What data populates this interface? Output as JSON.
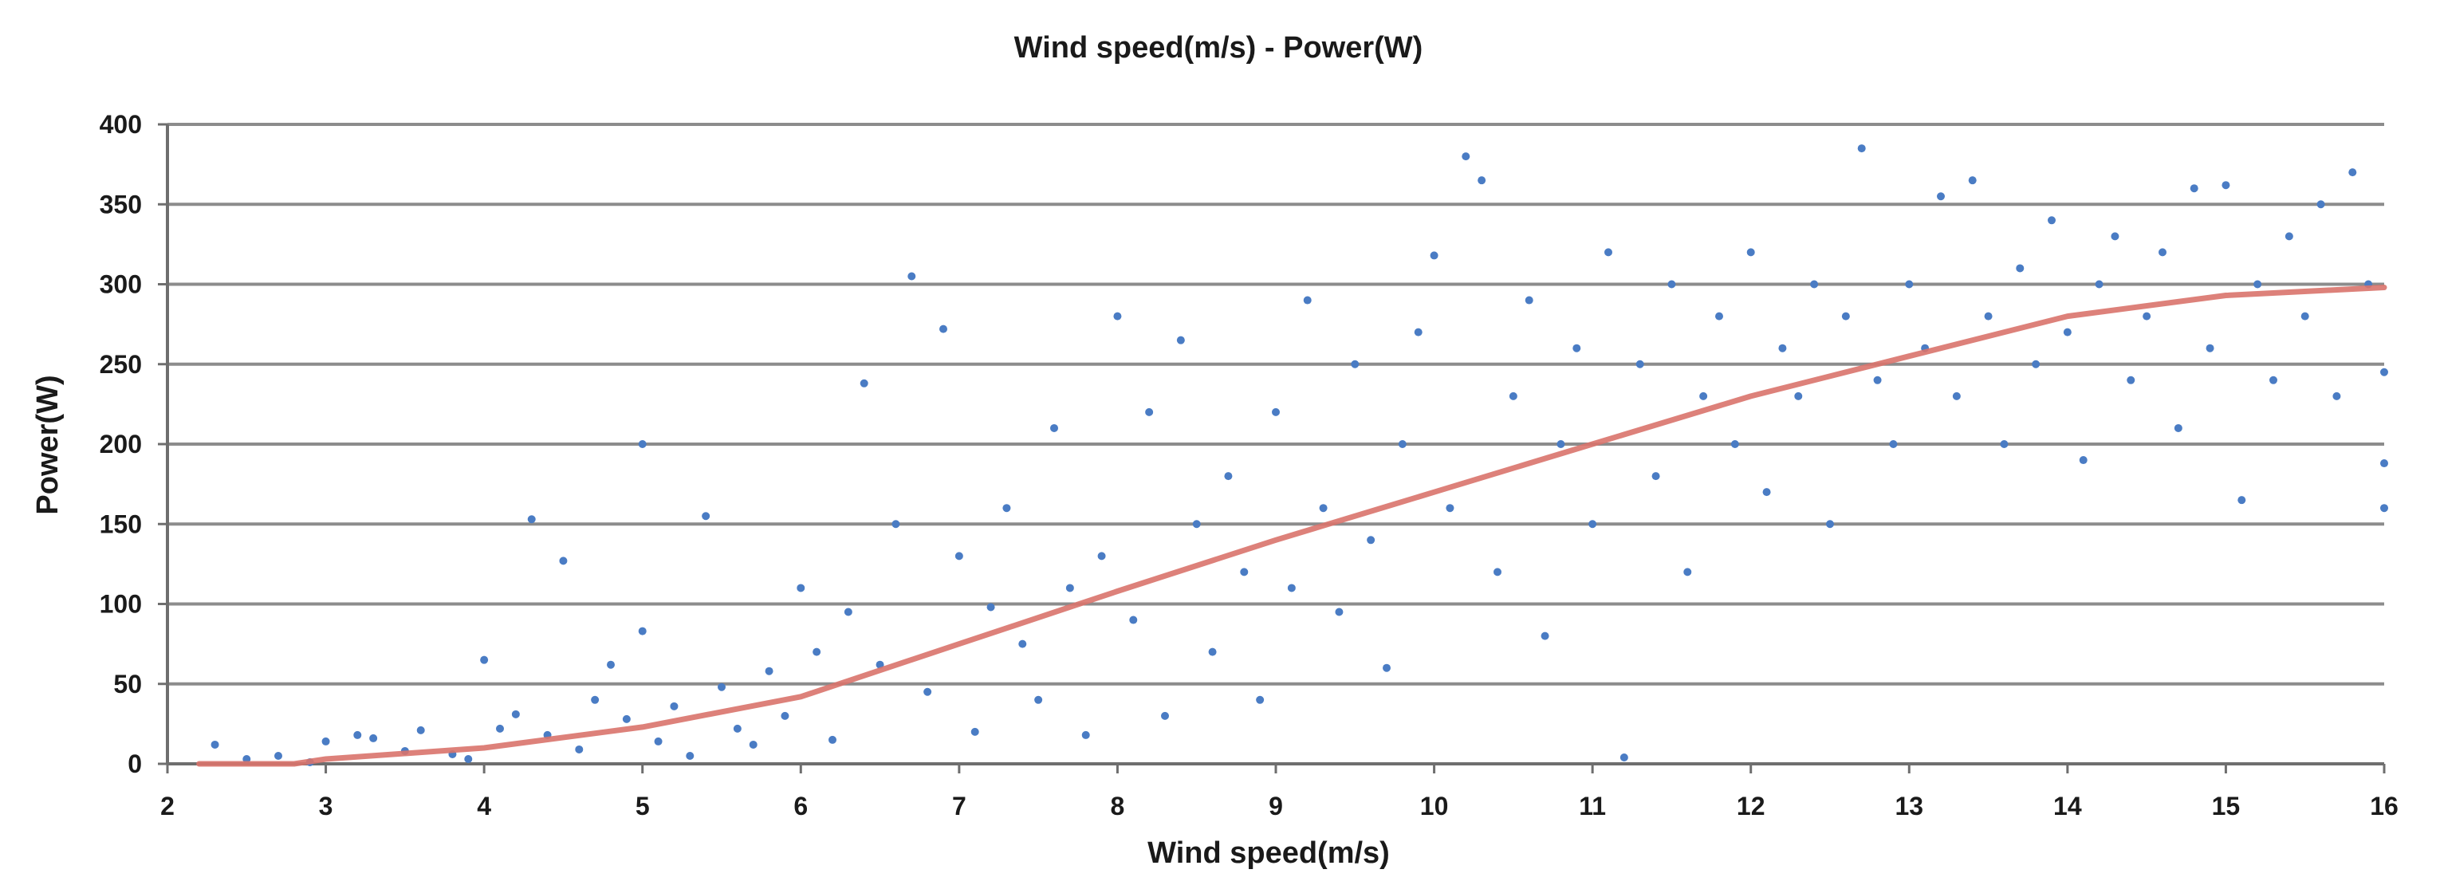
{
  "chart_data": {
    "type": "scatter",
    "title": "Wind speed(m/s) - Power(W)",
    "xlabel": "Wind speed(m/s)",
    "ylabel": "Power(W)",
    "xlim": [
      2,
      16
    ],
    "ylim": [
      0,
      400
    ],
    "x_ticks": [
      "2",
      "3",
      "4",
      "5",
      "6",
      "7",
      "8",
      "9",
      "10",
      "11",
      "12",
      "13",
      "14",
      "15",
      "16"
    ],
    "y_ticks": [
      "0",
      "50",
      "100",
      "150",
      "200",
      "250",
      "300",
      "350",
      "400"
    ],
    "grid": "horizontal",
    "legend": "none",
    "colors": {
      "points": "#4a7cc4",
      "trend": "#d9736b",
      "grid": "#8c8c8c",
      "axis": "#6e6e6e"
    },
    "trend_line": {
      "x": [
        2.2,
        2.8,
        3,
        4,
        5,
        6,
        7,
        8,
        9,
        10,
        11,
        12,
        13,
        14,
        15,
        16
      ],
      "y": [
        0,
        0,
        3,
        10,
        23,
        42,
        75,
        108,
        140,
        170,
        200,
        230,
        255,
        280,
        293,
        298
      ]
    },
    "series": [
      {
        "points": [
          [
            2.3,
            12
          ],
          [
            2.5,
            3
          ],
          [
            2.7,
            5
          ],
          [
            2.9,
            1
          ],
          [
            3.0,
            14
          ],
          [
            3.2,
            18
          ],
          [
            3.3,
            16
          ],
          [
            3.5,
            8
          ],
          [
            3.6,
            21
          ],
          [
            3.8,
            6
          ],
          [
            3.9,
            3
          ],
          [
            4.0,
            65
          ],
          [
            4.1,
            22
          ],
          [
            4.2,
            31
          ],
          [
            4.3,
            153
          ],
          [
            4.4,
            18
          ],
          [
            4.5,
            127
          ],
          [
            4.6,
            9
          ],
          [
            4.7,
            40
          ],
          [
            4.8,
            62
          ],
          [
            4.9,
            28
          ],
          [
            5.0,
            200
          ],
          [
            5.0,
            83
          ],
          [
            5.1,
            14
          ],
          [
            5.2,
            36
          ],
          [
            5.3,
            5
          ],
          [
            5.4,
            155
          ],
          [
            5.5,
            48
          ],
          [
            5.6,
            22
          ],
          [
            5.7,
            12
          ],
          [
            5.8,
            58
          ],
          [
            5.9,
            30
          ],
          [
            6.0,
            110
          ],
          [
            6.1,
            70
          ],
          [
            6.2,
            15
          ],
          [
            6.3,
            95
          ],
          [
            6.4,
            238
          ],
          [
            6.5,
            62
          ],
          [
            6.6,
            150
          ],
          [
            6.7,
            305
          ],
          [
            6.8,
            45
          ],
          [
            6.9,
            272
          ],
          [
            7.0,
            130
          ],
          [
            7.1,
            20
          ],
          [
            7.2,
            98
          ],
          [
            7.3,
            160
          ],
          [
            7.4,
            75
          ],
          [
            7.5,
            40
          ],
          [
            7.6,
            210
          ],
          [
            7.7,
            110
          ],
          [
            7.8,
            18
          ],
          [
            7.9,
            130
          ],
          [
            8.0,
            280
          ],
          [
            8.1,
            90
          ],
          [
            8.2,
            220
          ],
          [
            8.3,
            30
          ],
          [
            8.4,
            265
          ],
          [
            8.5,
            150
          ],
          [
            8.6,
            70
          ],
          [
            8.7,
            180
          ],
          [
            8.8,
            120
          ],
          [
            8.9,
            40
          ],
          [
            9.0,
            220
          ],
          [
            9.1,
            110
          ],
          [
            9.2,
            290
          ],
          [
            9.3,
            160
          ],
          [
            9.4,
            95
          ],
          [
            9.5,
            250
          ],
          [
            9.6,
            140
          ],
          [
            9.7,
            60
          ],
          [
            9.8,
            200
          ],
          [
            9.9,
            270
          ],
          [
            10.0,
            318
          ],
          [
            10.1,
            160
          ],
          [
            10.2,
            380
          ],
          [
            10.3,
            365
          ],
          [
            10.4,
            120
          ],
          [
            10.5,
            230
          ],
          [
            10.6,
            290
          ],
          [
            10.7,
            80
          ],
          [
            10.8,
            200
          ],
          [
            10.9,
            260
          ],
          [
            11.0,
            150
          ],
          [
            11.1,
            320
          ],
          [
            11.2,
            4
          ],
          [
            11.3,
            250
          ],
          [
            11.4,
            180
          ],
          [
            11.5,
            300
          ],
          [
            11.6,
            120
          ],
          [
            11.7,
            230
          ],
          [
            11.8,
            280
          ],
          [
            11.9,
            200
          ],
          [
            12.0,
            320
          ],
          [
            12.1,
            170
          ],
          [
            12.2,
            260
          ],
          [
            12.3,
            230
          ],
          [
            12.4,
            300
          ],
          [
            12.5,
            150
          ],
          [
            12.6,
            280
          ],
          [
            12.7,
            385
          ],
          [
            12.8,
            240
          ],
          [
            12.9,
            200
          ],
          [
            13.0,
            300
          ],
          [
            13.1,
            260
          ],
          [
            13.2,
            355
          ],
          [
            13.3,
            230
          ],
          [
            13.4,
            365
          ],
          [
            13.5,
            280
          ],
          [
            13.6,
            200
          ],
          [
            13.7,
            310
          ],
          [
            13.8,
            250
          ],
          [
            13.9,
            340
          ],
          [
            14.0,
            270
          ],
          [
            14.1,
            190
          ],
          [
            14.2,
            300
          ],
          [
            14.3,
            330
          ],
          [
            14.4,
            240
          ],
          [
            14.5,
            280
          ],
          [
            14.6,
            320
          ],
          [
            14.7,
            210
          ],
          [
            14.8,
            360
          ],
          [
            14.9,
            260
          ],
          [
            15.0,
            362
          ],
          [
            15.1,
            165
          ],
          [
            15.2,
            300
          ],
          [
            15.3,
            240
          ],
          [
            15.4,
            330
          ],
          [
            15.5,
            280
          ],
          [
            15.6,
            350
          ],
          [
            15.7,
            230
          ],
          [
            15.8,
            370
          ],
          [
            15.9,
            300
          ],
          [
            16.0,
            160
          ],
          [
            16.0,
            188
          ],
          [
            16.0,
            245
          ]
        ]
      }
    ]
  }
}
